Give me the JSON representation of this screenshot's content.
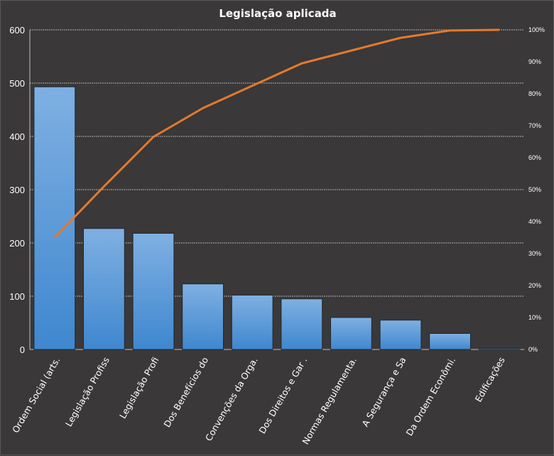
{
  "chart_data": {
    "type": "bar",
    "title": "Legislação aplicada",
    "categories": [
      "Ordem Social (arts.",
      "Legislação Profiss",
      "Legislação Profi",
      "Dos Benefícios do",
      "Convenções da Orga.",
      "Dos Direitos e Gar .",
      "Normas Regulamenta.",
      "A Segurança e Sa",
      "Da Ordem Econômi.",
      "Edificações"
    ],
    "series": [
      {
        "type": "bar",
        "values": [
          493,
          227,
          218,
          123,
          102,
          95,
          60,
          55,
          30,
          2
        ]
      },
      {
        "type": "line",
        "axis": "right",
        "values": [
          35,
          51,
          66.5,
          75.5,
          82.5,
          89.5,
          93.5,
          97.5,
          99.8,
          100
        ]
      }
    ],
    "ylim": [
      0,
      600
    ],
    "yticks": [
      "0",
      "100",
      "200",
      "300",
      "400",
      "500",
      "600"
    ],
    "y2lim": [
      0,
      100
    ],
    "y2ticks": [
      "0%",
      "10%",
      "20%",
      "30%",
      "40%",
      "50%",
      "60%",
      "70%",
      "80%",
      "90%",
      "100%"
    ],
    "grid": true,
    "colors": {
      "bar": "#4a90d4",
      "bar_light": "#7fb0e2",
      "line": "#e37a2e",
      "grid": "#d9d9d9",
      "background": "#3a3838",
      "text": "#ffffff"
    }
  }
}
